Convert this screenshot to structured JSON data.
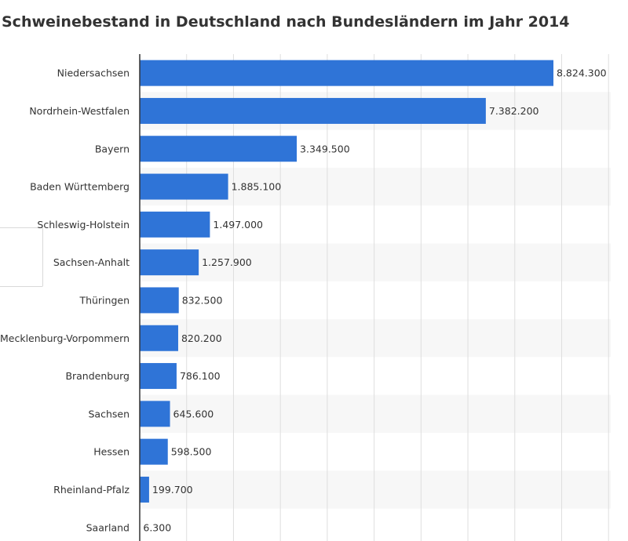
{
  "chart_data": {
    "type": "bar",
    "orientation": "horizontal",
    "title": "Schweinebestand in Deutschland nach Bundesländern im Jahr 2014",
    "xlabel": "",
    "ylabel": "",
    "categories": [
      "Niedersachsen",
      "Nordrhein-Westfalen",
      "Bayern",
      "Baden Württemberg",
      "Schleswig-Holstein",
      "Sachsen-Anhalt",
      "Thüringen",
      "Mecklenburg-Vorpommern",
      "Brandenburg",
      "Sachsen",
      "Hessen",
      "Rheinland-Pfalz",
      "Saarland"
    ],
    "values": [
      8824300,
      7382200,
      3349500,
      1885100,
      1497000,
      1257900,
      832500,
      820200,
      786100,
      645600,
      598500,
      199700,
      6300
    ],
    "value_labels": [
      "8.824.300",
      "7.382.200",
      "3.349.500",
      "1.885.100",
      "1.497.000",
      "1.257.900",
      "832.500",
      "820.200",
      "786.100",
      "645.600",
      "598.500",
      "199.700",
      "6.300"
    ],
    "xlim": [
      0,
      10000000
    ],
    "grid": true,
    "legend": "none",
    "bar_color": "#2f74d7",
    "band_color": "#f7f7f7"
  }
}
